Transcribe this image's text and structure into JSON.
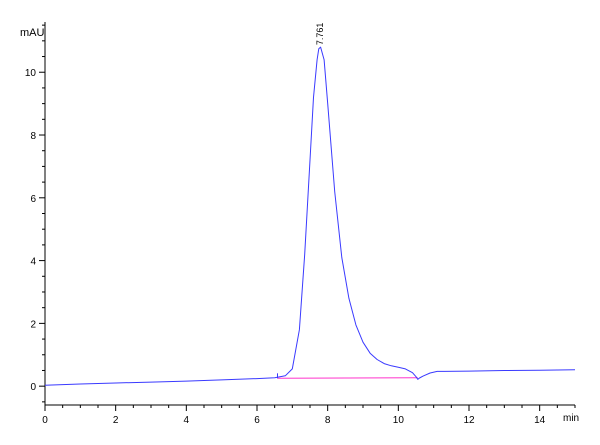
{
  "chart_data": {
    "type": "line",
    "title": "",
    "xlabel": "min",
    "ylabel": "mAU",
    "xlim": [
      0,
      15
    ],
    "ylim": [
      -0.6,
      11.6
    ],
    "x_ticks": [
      0,
      2,
      4,
      6,
      8,
      10,
      12,
      14
    ],
    "y_ticks": [
      0,
      2,
      4,
      6,
      8,
      10
    ],
    "colors": {
      "trace": "#3a3aff",
      "baseline": "#ff33cc",
      "axis": "#000000"
    },
    "series": [
      {
        "x": [
          0,
          1,
          2,
          3,
          4,
          5,
          6,
          6.5,
          6.8,
          7.0,
          7.2,
          7.35,
          7.5,
          7.6,
          7.7,
          7.75,
          7.8,
          7.9,
          8.0,
          8.2,
          8.4,
          8.6,
          8.8,
          9.0,
          9.2,
          9.4,
          9.6,
          9.8,
          10.0,
          10.2,
          10.4,
          10.5,
          10.55,
          10.6,
          10.7,
          10.9,
          11.1,
          11.3,
          12,
          13,
          14,
          15
        ],
        "values": [
          0.03,
          0.07,
          0.1,
          0.13,
          0.16,
          0.2,
          0.24,
          0.27,
          0.33,
          0.55,
          1.8,
          4.2,
          7.2,
          9.2,
          10.4,
          10.75,
          10.8,
          10.4,
          9.0,
          6.2,
          4.1,
          2.8,
          1.95,
          1.4,
          1.05,
          0.85,
          0.72,
          0.65,
          0.6,
          0.55,
          0.43,
          0.3,
          0.22,
          0.26,
          0.32,
          0.42,
          0.47,
          0.47,
          0.48,
          0.5,
          0.51,
          0.52
        ]
      },
      {
        "x": [
          6.58,
          10.55
        ],
        "values": [
          0.25,
          0.27
        ]
      }
    ],
    "annotations": [
      {
        "text": "7.761",
        "x": 7.761,
        "y": 10.8
      }
    ]
  }
}
